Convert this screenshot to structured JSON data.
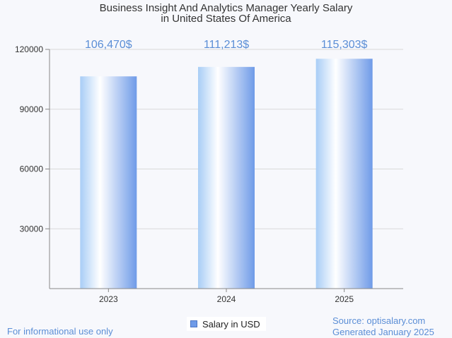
{
  "chart_data": {
    "type": "bar",
    "title_line1": "Business Insight And Analytics Manager Yearly Salary",
    "title_line2": "in United States Of America",
    "categories": [
      "2023",
      "2024",
      "2025"
    ],
    "values": [
      106470,
      111213,
      115303
    ],
    "value_labels": [
      "106,470$",
      "111,213$",
      "115,303$"
    ],
    "series": [
      {
        "name": "Salary in USD",
        "values": [
          106470,
          111213,
          115303
        ]
      }
    ],
    "y_ticks": [
      30000,
      60000,
      90000,
      120000
    ],
    "ylim": [
      0,
      120000
    ],
    "grid": true,
    "legend_position": "bottom-center",
    "colors": {
      "bar_light": "#ffffff",
      "bar_mid": "#a8cdf6",
      "bar_dark": "#6f9be8",
      "value_label": "#5b8ed6",
      "grid": "#d9d9d9",
      "axis": "#888888"
    }
  },
  "footer": {
    "left": "For informational use only",
    "source": "Source: optisalary.com",
    "generated": "Generated January 2025"
  }
}
